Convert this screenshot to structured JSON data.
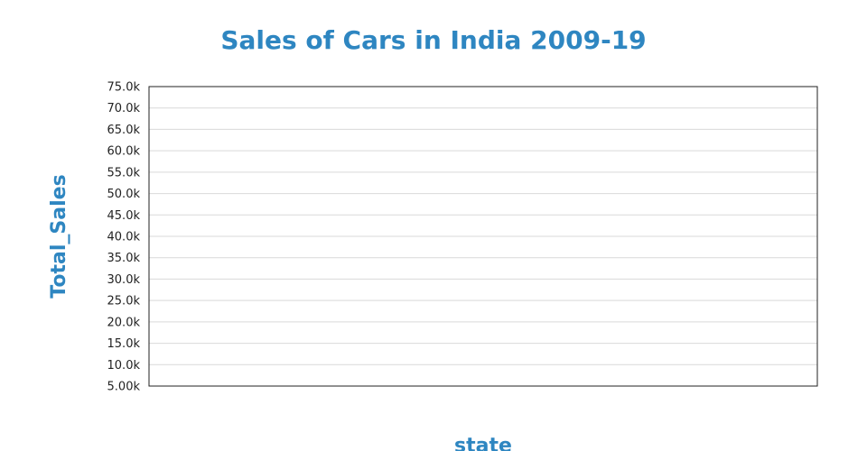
{
  "chart_data": {
    "type": "bar",
    "title": "Sales of Cars in India 2009-19",
    "xlabel": "state",
    "ylabel": "Total_Sales",
    "categories": [],
    "series": [],
    "ylim": [
      5000,
      75000
    ],
    "y_ticks": [
      {
        "value": 75000,
        "label": "75.0k"
      },
      {
        "value": 70000,
        "label": "70.0k"
      },
      {
        "value": 65000,
        "label": "65.0k"
      },
      {
        "value": 60000,
        "label": "60.0k"
      },
      {
        "value": 55000,
        "label": "55.0k"
      },
      {
        "value": 50000,
        "label": "50.0k"
      },
      {
        "value": 45000,
        "label": "45.0k"
      },
      {
        "value": 40000,
        "label": "40.0k"
      },
      {
        "value": 35000,
        "label": "35.0k"
      },
      {
        "value": 30000,
        "label": "30.0k"
      },
      {
        "value": 25000,
        "label": "25.0k"
      },
      {
        "value": 20000,
        "label": "20.0k"
      },
      {
        "value": 15000,
        "label": "15.0k"
      },
      {
        "value": 10000,
        "label": "10.0k"
      },
      {
        "value": 5000,
        "label": "5.00k"
      }
    ],
    "grid": true,
    "colors": {
      "title": "#2e86c1",
      "axis_title": "#2e86c1",
      "gridline": "#d9d9d9",
      "frame": "#222222"
    }
  }
}
